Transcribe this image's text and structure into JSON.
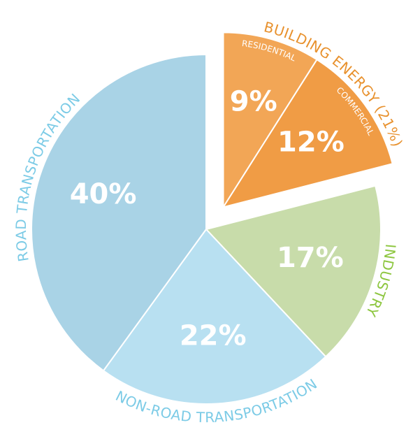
{
  "chart_data": {
    "type": "pie",
    "categories": [
      "RESIDENTIAL",
      "COMMERCIAL",
      "INDUSTRY",
      "NON-ROAD TRANSPORTATION",
      "ROAD TRANSPORTATION"
    ],
    "values": [
      9,
      12,
      17,
      22,
      40
    ],
    "value_labels": [
      "9%",
      "12%",
      "17%",
      "22%",
      "40%"
    ],
    "colors": [
      "#f2a656",
      "#f09c45",
      "#c8dcaa",
      "#b8e0f1",
      "#a9d3e6"
    ],
    "label_colors": [
      "#ffffff",
      "#ffffff",
      "#8dc63f",
      "#7ccbe6",
      "#7ccbe6"
    ],
    "exploded": [
      true,
      true,
      false,
      false,
      false
    ],
    "group_label": "BUILDING ENERGY (21%)",
    "group_color": "#e8912d"
  }
}
